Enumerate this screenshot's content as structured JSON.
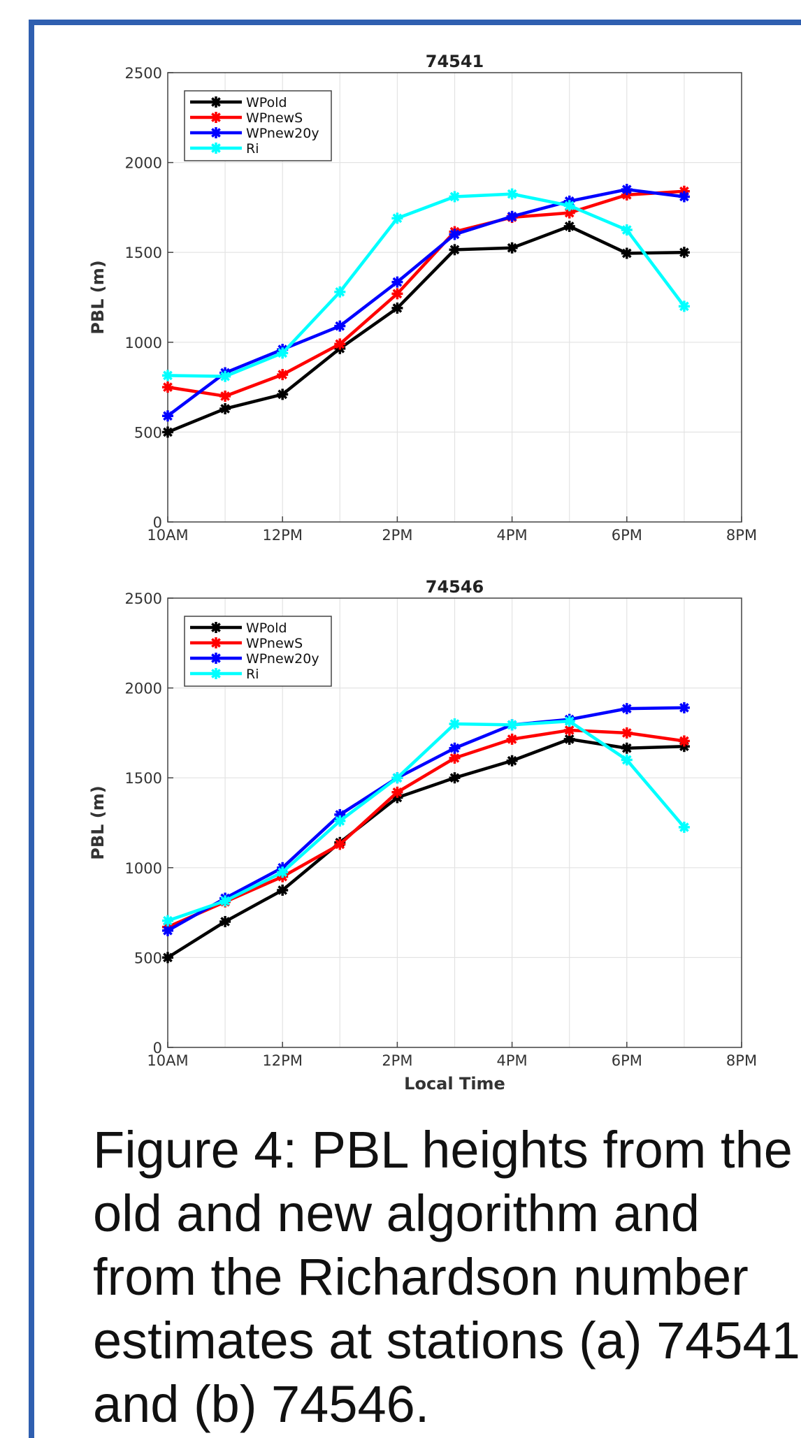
{
  "caption": "Figure 4: PBL heights from the old and new algorithm and from the Richardson number estimates at stations (a) 74541 and (b) 74546.",
  "caption_lines": [
    "Figure 4: PBL heights from the",
    "old and new algorithm and",
    "from the Richardson number",
    "estimates at stations (a) 74541",
    "and (b) 74546."
  ],
  "colors": {
    "frame": "#2f5fb0",
    "WPold": "#000000",
    "WPnewS": "#ff0000",
    "WPnew20y": "#0000ff",
    "Ri": "#00ffff"
  },
  "chart_data": [
    {
      "type": "line",
      "title": "74541",
      "xlabel": "",
      "ylabel": "PBL (m)",
      "x_tick_labels": [
        "10AM",
        "12PM",
        "2PM",
        "4PM",
        "6PM",
        "8PM"
      ],
      "xlim": [
        "10AM",
        "8PM"
      ],
      "ylim": [
        0,
        2500
      ],
      "y_ticks": [
        0,
        500,
        1000,
        1500,
        2000,
        2500
      ],
      "grid": true,
      "legend_position": "top-left",
      "x": [
        "10AM",
        "11AM",
        "12PM",
        "1PM",
        "2PM",
        "3PM",
        "4PM",
        "5PM",
        "6PM",
        "7PM"
      ],
      "series": [
        {
          "name": "WPold",
          "color": "#000000",
          "values": [
            500,
            630,
            710,
            965,
            1190,
            1515,
            1525,
            1645,
            1495,
            1500
          ]
        },
        {
          "name": "WPnewS",
          "color": "#ff0000",
          "values": [
            750,
            700,
            820,
            990,
            1270,
            1615,
            1695,
            1720,
            1820,
            1840
          ]
        },
        {
          "name": "WPnew20y",
          "color": "#0000ff",
          "values": [
            590,
            830,
            960,
            1090,
            1335,
            1600,
            1700,
            1785,
            1850,
            1810
          ]
        },
        {
          "name": "Ri",
          "color": "#00ffff",
          "values": [
            815,
            810,
            940,
            1280,
            1690,
            1810,
            1825,
            1760,
            1625,
            1200
          ]
        }
      ]
    },
    {
      "type": "line",
      "title": "74546",
      "xlabel": "Local Time",
      "ylabel": "PBL (m)",
      "x_tick_labels": [
        "10AM",
        "12PM",
        "2PM",
        "4PM",
        "6PM",
        "8PM"
      ],
      "xlim": [
        "10AM",
        "8PM"
      ],
      "ylim": [
        0,
        2500
      ],
      "y_ticks": [
        0,
        500,
        1000,
        1500,
        2000,
        2500
      ],
      "grid": true,
      "legend_position": "top-left",
      "x": [
        "10AM",
        "11AM",
        "12PM",
        "1PM",
        "2PM",
        "3PM",
        "4PM",
        "5PM",
        "6PM",
        "7PM"
      ],
      "series": [
        {
          "name": "WPold",
          "color": "#000000",
          "values": [
            500,
            700,
            875,
            1140,
            1390,
            1500,
            1595,
            1715,
            1665,
            1675
          ]
        },
        {
          "name": "WPnewS",
          "color": "#ff0000",
          "values": [
            670,
            810,
            950,
            1130,
            1420,
            1610,
            1715,
            1765,
            1750,
            1705
          ]
        },
        {
          "name": "WPnew20y",
          "color": "#0000ff",
          "values": [
            650,
            830,
            1000,
            1295,
            1500,
            1665,
            1795,
            1825,
            1885,
            1890
          ]
        },
        {
          "name": "Ri",
          "color": "#00ffff",
          "values": [
            705,
            815,
            975,
            1260,
            1500,
            1800,
            1795,
            1815,
            1600,
            1225
          ]
        }
      ]
    }
  ]
}
